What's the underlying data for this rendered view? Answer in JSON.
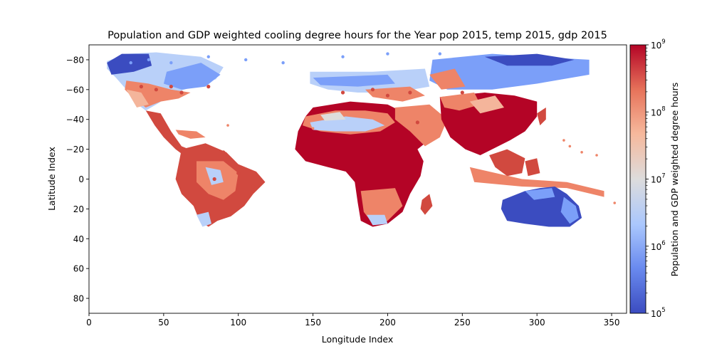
{
  "chart_data": {
    "type": "heatmap",
    "title": "Population and GDP weighted cooling degree hours for the Year pop 2015, temp 2015, gdp 2015",
    "xlabel": "Longitude Index",
    "ylabel": "Latitude Index",
    "xlim": [
      0,
      360
    ],
    "ylim": [
      90,
      -90
    ],
    "y_inverted": true,
    "xticks": [
      0,
      50,
      100,
      150,
      200,
      250,
      300,
      350
    ],
    "yticks": [
      -80,
      -60,
      -40,
      -20,
      0,
      20,
      40,
      60,
      80
    ],
    "colorbar": {
      "label": "Population and GDP weighted degree hours",
      "scale": "log",
      "range": [
        100000,
        1000000000
      ],
      "ticks": [
        {
          "base": "10",
          "exp": "5"
        },
        {
          "base": "10",
          "exp": "6"
        },
        {
          "base": "10",
          "exp": "7"
        },
        {
          "base": "10",
          "exp": "8"
        },
        {
          "base": "10",
          "exp": "9"
        }
      ],
      "colormap": "coolwarm",
      "colors": [
        "#3b4cc0",
        "#7b9ff9",
        "#c0d4f5",
        "#dddcdc",
        "#f2cbb7",
        "#ee8468",
        "#b40426"
      ]
    },
    "regions": [
      {
        "name": "North America",
        "x": [
          12,
          90
        ],
        "y": [
          -85,
          -45
        ],
        "level": "low-mid"
      },
      {
        "name": "Central America",
        "x": [
          40,
          95
        ],
        "y": [
          -42,
          -15
        ],
        "level": "high"
      },
      {
        "name": "South America",
        "x": [
          58,
          118
        ],
        "y": [
          -22,
          32
        ],
        "level": "high"
      },
      {
        "name": "Europe",
        "x": [
          148,
          230
        ],
        "y": [
          -72,
          -58
        ],
        "level": "low"
      },
      {
        "name": "Sahara",
        "x": [
          140,
          205
        ],
        "y": [
          -42,
          -30
        ],
        "level": "low-mid"
      },
      {
        "name": "Africa",
        "x": [
          140,
          225
        ],
        "y": [
          -35,
          30
        ],
        "level": "high"
      },
      {
        "name": "Russia",
        "x": [
          230,
          335
        ],
        "y": [
          -85,
          -60
        ],
        "level": "low"
      },
      {
        "name": "Asia",
        "x": [
          230,
          300
        ],
        "y": [
          -58,
          -18
        ],
        "level": "high"
      },
      {
        "name": "Southeast Asia",
        "x": [
          255,
          345
        ],
        "y": [
          -20,
          5
        ],
        "level": "high"
      },
      {
        "name": "Australia",
        "x": [
          277,
          330
        ],
        "y": [
          6,
          32
        ],
        "level": "low"
      }
    ]
  }
}
